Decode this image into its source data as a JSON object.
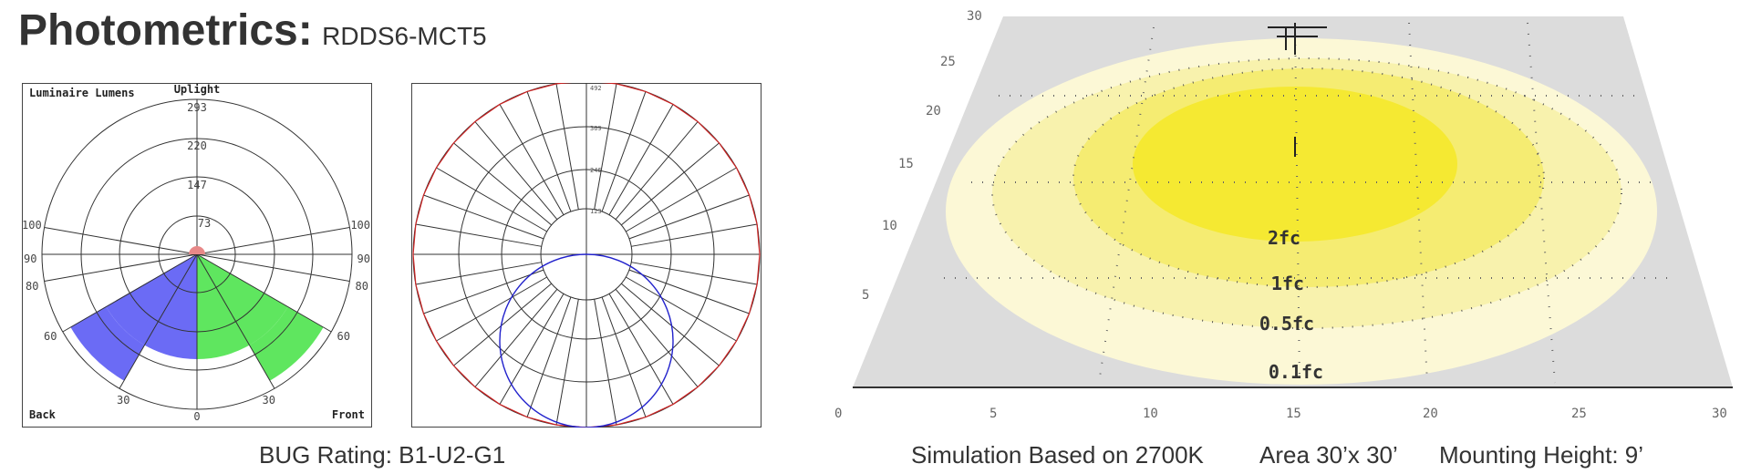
{
  "header": {
    "title": "Photometrics:",
    "model": "RDDS6-MCT5"
  },
  "bug_chart": {
    "corner_labels": {
      "top_left": "Luminaire Lumens",
      "top_center": "Uplight",
      "bottom_left": "Back",
      "bottom_right": "Front"
    },
    "ring_values": [
      "293",
      "220",
      "147",
      "73"
    ],
    "angle_labels": {
      "a100": "100",
      "a90": "90",
      "a80": "80",
      "a60": "60",
      "a30": "30",
      "a0": "0"
    },
    "colors": {
      "back": "#6b6bf5",
      "front": "#5fe65f",
      "uplight": "#e88888"
    }
  },
  "polar_chart": {
    "ring_values": [
      "492",
      "369",
      "246",
      "123"
    ],
    "colors": {
      "outline": "#cc2222",
      "distribution": "#2222cc"
    }
  },
  "iso_plot": {
    "y_ticks": [
      "30",
      "25",
      "20",
      "15",
      "10",
      "5"
    ],
    "x_ticks": [
      "0",
      "5",
      "10",
      "15",
      "20",
      "25",
      "30"
    ],
    "contours": [
      {
        "label": "2fc",
        "color": "#f5e932"
      },
      {
        "label": "1fc",
        "color": "#f5ec72"
      },
      {
        "label": "0.5fc",
        "color": "#f8f2ad"
      },
      {
        "label": "0.1fc",
        "color": "#fcf8d6"
      }
    ],
    "colors": {
      "background": "#dcdcdc"
    }
  },
  "captions": {
    "bug_rating": "BUG Rating: B1-U2-G1",
    "simulation": "Simulation Based on 2700K",
    "area": "Area 30’x 30’",
    "mounting": "Mounting Height: 9’"
  }
}
